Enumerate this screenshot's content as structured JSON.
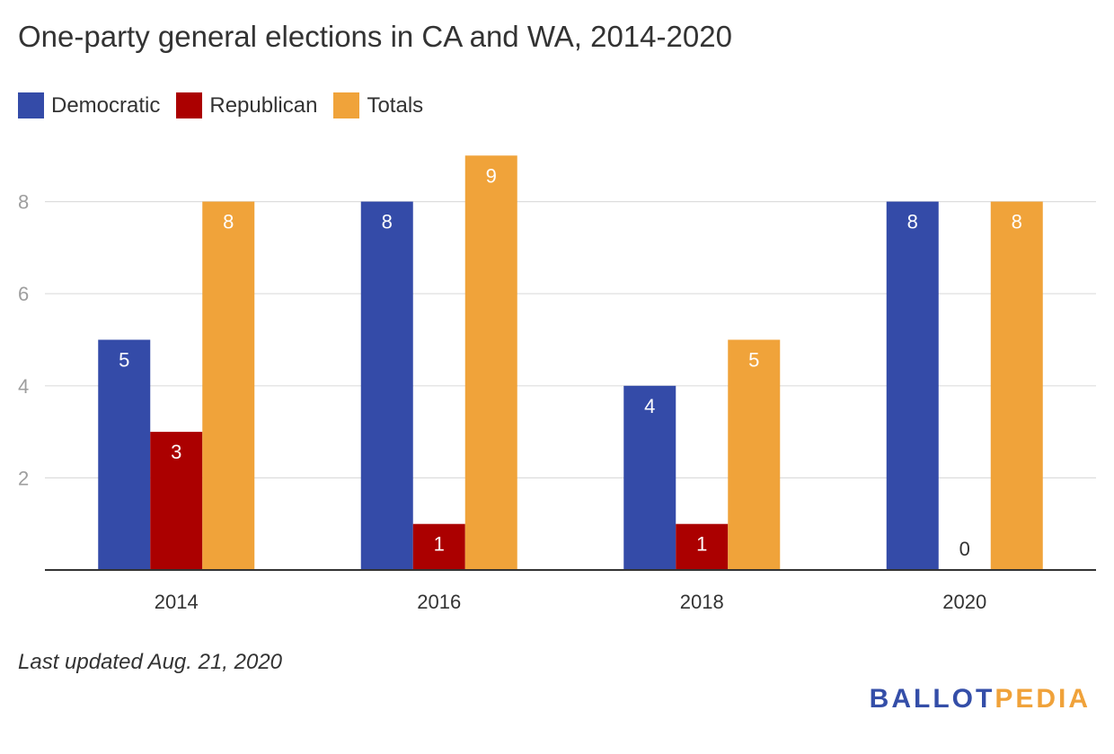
{
  "colors": {
    "democratic": "#344ba8",
    "republican": "#ab0000",
    "totals": "#f0a33a",
    "grid": "#dddddd",
    "axis": "#333333",
    "tick_label": "#9e9e9e",
    "bar_label_light": "#ffffff",
    "bar_label_dark": "#333333"
  },
  "chart_data": {
    "type": "bar",
    "title": "One-party general elections in CA and WA, 2014-2020",
    "categories": [
      "2014",
      "2016",
      "2018",
      "2020"
    ],
    "series": [
      {
        "name": "Democratic",
        "color_key": "democratic",
        "values": [
          5,
          8,
          4,
          8
        ]
      },
      {
        "name": "Republican",
        "color_key": "republican",
        "values": [
          3,
          1,
          1,
          0
        ]
      },
      {
        "name": "Totals",
        "color_key": "totals",
        "values": [
          8,
          9,
          5,
          8
        ]
      }
    ],
    "y_ticks": [
      2,
      4,
      6,
      8
    ],
    "ylim": [
      0,
      9.5
    ],
    "xlabel": "",
    "ylabel": "",
    "grid": true,
    "legend_position": "top-left"
  },
  "footnote": "Last updated Aug. 21, 2020",
  "logo": {
    "part1": "BALLOT",
    "part2": "PEDIA"
  }
}
